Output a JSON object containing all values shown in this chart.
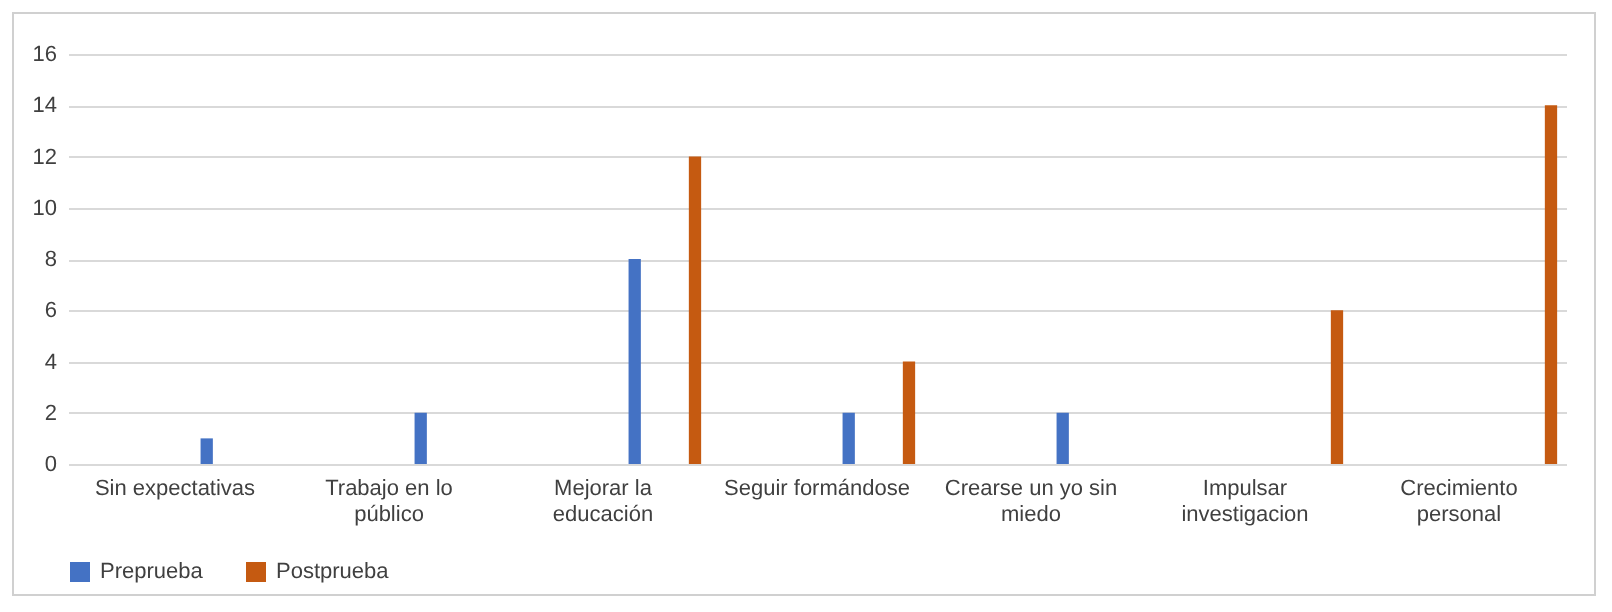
{
  "chart_data": {
    "type": "bar",
    "categories": [
      "Sin expectativas",
      "Trabajo en lo público",
      "Mejorar la educación",
      "Seguir formándose",
      "Crearse un yo sin miedo",
      "Impulsar investigacion",
      "Crecimiento personal"
    ],
    "series": [
      {
        "name": "Preprueba",
        "color": "#4472c4",
        "values": [
          1,
          2,
          8,
          2,
          2,
          0,
          0
        ]
      },
      {
        "name": "Postprueba",
        "color": "#c55a11",
        "values": [
          0,
          0,
          12,
          4,
          0,
          6,
          14
        ]
      }
    ],
    "ylim": [
      0,
      16
    ],
    "yticks": [
      0,
      2,
      4,
      6,
      8,
      10,
      12,
      14,
      16
    ],
    "grid": "y",
    "legend": "bottom"
  }
}
